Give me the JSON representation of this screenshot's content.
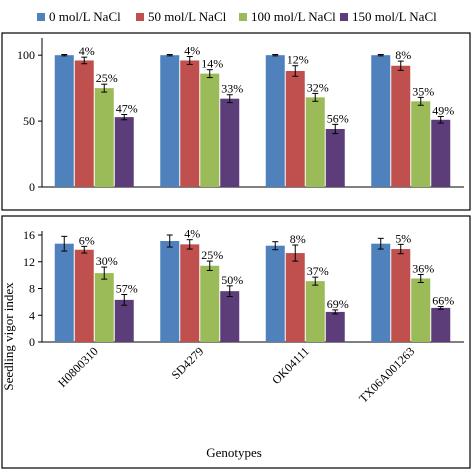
{
  "colors": {
    "series": [
      "#4f81bd",
      "#c0504d",
      "#9bbb59",
      "#5c3d7a"
    ],
    "error_bar": "#000000",
    "frame": "#000000"
  },
  "legend": {
    "entries": [
      "0 mol/L NaCl",
      "50 mol/L NaCl",
      "100 mol/L NaCl",
      "150 mol/L NaCl"
    ],
    "placement": "top"
  },
  "chart_data": [
    {
      "type": "bar",
      "title": "",
      "xlabel": "",
      "ylabel": "",
      "categories": [
        "H0800310",
        "SD4279",
        "OK04111",
        "TX06A001263"
      ],
      "ylim": [
        0,
        110
      ],
      "yticks": [
        "0",
        "50",
        "100"
      ],
      "series": [
        {
          "name": "0 mol/L NaCl",
          "values": [
            100,
            100,
            100,
            100
          ],
          "errors": [
            0.5,
            0.5,
            0.5,
            0.5
          ],
          "labels": [
            "",
            "",
            "",
            ""
          ]
        },
        {
          "name": "50 mol/L NaCl",
          "values": [
            96,
            96,
            88,
            92
          ],
          "errors": [
            2.5,
            3,
            4,
            3.5
          ],
          "labels": [
            "4%",
            "4%",
            "12%",
            "8%"
          ]
        },
        {
          "name": "100 mol/L NaCl",
          "values": [
            75,
            86,
            68,
            65
          ],
          "errors": [
            3,
            3,
            3,
            3
          ],
          "labels": [
            "25%",
            "14%",
            "32%",
            "35%"
          ]
        },
        {
          "name": "150 mol/L NaCl",
          "values": [
            53,
            67,
            44,
            51
          ],
          "errors": [
            2,
            3,
            3.5,
            2.5
          ],
          "labels": [
            "47%",
            "33%",
            "56%",
            "49%"
          ]
        }
      ]
    },
    {
      "type": "bar",
      "title": "",
      "xlabel": "Genotypes",
      "ylabel": "Seedling vigor index",
      "categories": [
        "H0800310",
        "SD4279",
        "OK04111",
        "TX06A001263"
      ],
      "ylim": [
        0,
        16
      ],
      "yticks": [
        "0",
        "4",
        "8",
        "12",
        "16"
      ],
      "series": [
        {
          "name": "0 mol/L NaCl",
          "values": [
            14.7,
            15.1,
            14.4,
            14.7
          ],
          "errors": [
            1.1,
            0.9,
            0.6,
            0.8
          ],
          "labels": [
            "",
            "",
            "",
            ""
          ]
        },
        {
          "name": "50 mol/L NaCl",
          "values": [
            13.8,
            14.6,
            13.3,
            13.9
          ],
          "errors": [
            0.5,
            0.7,
            1.2,
            0.7
          ],
          "labels": [
            "6%",
            "4%",
            "8%",
            "5%"
          ]
        },
        {
          "name": "100 mol/L NaCl",
          "values": [
            10.3,
            11.4,
            9.1,
            9.5
          ],
          "errors": [
            0.9,
            0.7,
            0.6,
            0.6
          ],
          "labels": [
            "30%",
            "25%",
            "37%",
            "36%"
          ]
        },
        {
          "name": "150 mol/L NaCl",
          "values": [
            6.3,
            7.6,
            4.5,
            5.1
          ],
          "errors": [
            0.8,
            0.8,
            0.3,
            0.2
          ],
          "labels": [
            "57%",
            "50%",
            "69%",
            "66%"
          ]
        }
      ]
    }
  ]
}
